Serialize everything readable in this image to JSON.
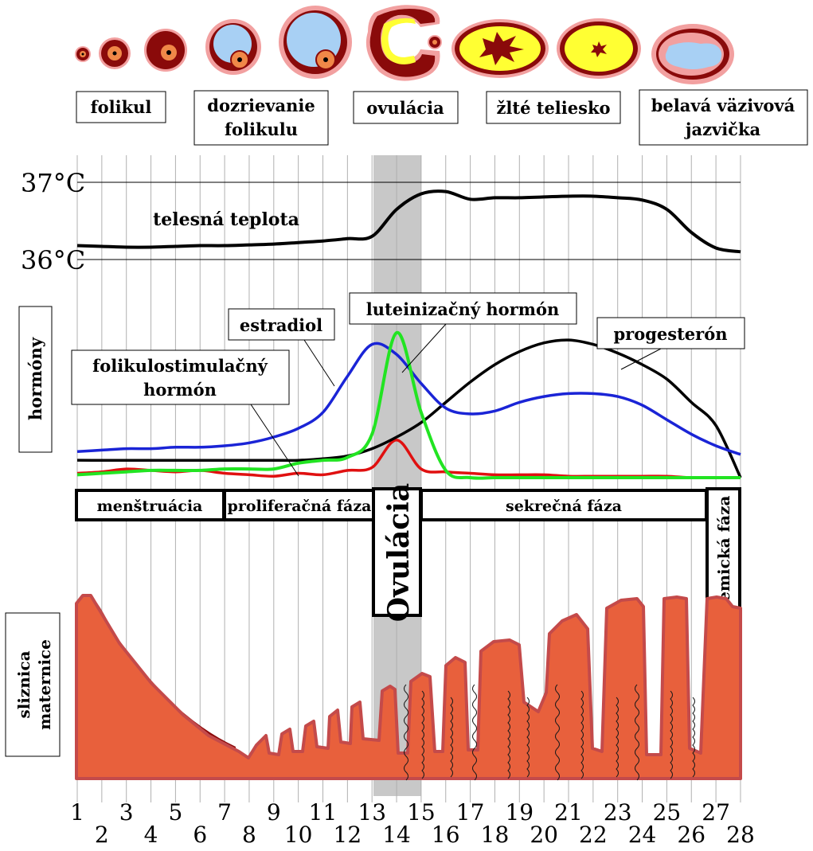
{
  "stages": {
    "follicle": "folikul",
    "maturation_line1": "dozrievanie",
    "maturation_line2": "folikulu",
    "ovulation": "ovulácia",
    "corpus_luteum": "žlté teliesko",
    "corpus_albicans_line1": "belavá väzivová",
    "corpus_albicans_line2": "jazvička"
  },
  "temperature": {
    "label": "telesná teplota",
    "tick_high": "37°C",
    "tick_low": "36°C"
  },
  "hormones": {
    "axis_label": "hormóny",
    "estradiol": "estradiol",
    "lh": "luteinizačný hormón",
    "progesterone": "progesterón",
    "fsh_line1": "folikulostimulačný",
    "fsh_line2": "hormón"
  },
  "phases": {
    "menstruation": "menštruácia",
    "proliferative": "proliferačná fáza",
    "ovulation": "Ovulácia",
    "secretory": "sekrečná fáza",
    "ischemic": "ischemická fáza"
  },
  "endometrium": {
    "label_line1": "sliznica",
    "label_line2": "maternice"
  },
  "days": [
    "1",
    "2",
    "3",
    "4",
    "5",
    "6",
    "7",
    "8",
    "9",
    "10",
    "11",
    "12",
    "13",
    "14",
    "15",
    "16",
    "17",
    "18",
    "19",
    "20",
    "21",
    "22",
    "23",
    "24",
    "25",
    "26",
    "27",
    "28"
  ],
  "colors": {
    "temperature": "#000000",
    "estradiol": "#1a24d6",
    "lh": "#22e422",
    "fsh": "#e01010",
    "progesterone": "#000000",
    "endometrium": "#e8603c",
    "endometrium_edge": "#c44a4a",
    "endometrium_shed": "#8a0a0a",
    "ovulation_band": "#c8c8c8"
  },
  "chart_data": {
    "type": "line",
    "x_label": "",
    "x": [
      1,
      2,
      3,
      4,
      5,
      6,
      7,
      8,
      9,
      10,
      11,
      12,
      13,
      14,
      15,
      16,
      17,
      18,
      19,
      20,
      21,
      22,
      23,
      24,
      25,
      26,
      27,
      28
    ],
    "temperature_range_celsius": [
      36,
      37
    ],
    "series": [
      {
        "name": "telesná teplota",
        "unit": "°C",
        "values": [
          36.18,
          36.17,
          36.16,
          36.16,
          36.17,
          36.18,
          36.18,
          36.19,
          36.2,
          36.22,
          36.24,
          36.27,
          36.3,
          36.65,
          36.85,
          36.88,
          36.78,
          36.8,
          36.8,
          36.81,
          36.82,
          36.82,
          36.8,
          36.77,
          36.65,
          36.35,
          36.15,
          36.1
        ]
      },
      {
        "name": "estradiol",
        "values": [
          0.18,
          0.19,
          0.2,
          0.2,
          0.21,
          0.21,
          0.22,
          0.24,
          0.28,
          0.34,
          0.45,
          0.7,
          0.92,
          0.85,
          0.65,
          0.48,
          0.44,
          0.46,
          0.52,
          0.56,
          0.58,
          0.58,
          0.56,
          0.5,
          0.4,
          0.3,
          0.22,
          0.16
        ]
      },
      {
        "name": "luteinizačný hormón",
        "values": [
          0.02,
          0.03,
          0.04,
          0.05,
          0.05,
          0.05,
          0.06,
          0.06,
          0.06,
          0.1,
          0.12,
          0.14,
          0.3,
          1.0,
          0.45,
          0.05,
          0.0,
          0.0,
          0.0,
          0.0,
          0.0,
          0.0,
          0.0,
          0.0,
          0.0,
          0.0,
          0.0,
          0.0
        ]
      },
      {
        "name": "folikulostimulačný hormón",
        "values": [
          0.03,
          0.04,
          0.06,
          0.05,
          0.04,
          0.05,
          0.03,
          0.02,
          0.01,
          0.03,
          0.02,
          0.05,
          0.07,
          0.26,
          0.06,
          0.04,
          0.03,
          0.02,
          0.02,
          0.02,
          0.01,
          0.01,
          0.01,
          0.01,
          0.01,
          0.0,
          0.0,
          0.0
        ]
      },
      {
        "name": "progesterón",
        "values": [
          0.12,
          0.12,
          0.12,
          0.12,
          0.12,
          0.12,
          0.12,
          0.12,
          0.12,
          0.12,
          0.13,
          0.15,
          0.2,
          0.28,
          0.38,
          0.52,
          0.66,
          0.78,
          0.87,
          0.93,
          0.95,
          0.92,
          0.86,
          0.78,
          0.68,
          0.52,
          0.36,
          0.0
        ]
      }
    ]
  }
}
